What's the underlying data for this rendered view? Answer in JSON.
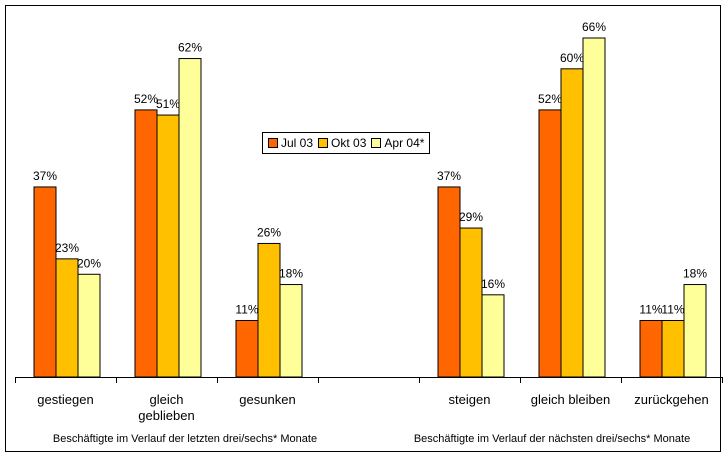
{
  "chart_data": {
    "type": "bar",
    "categories": [
      "gestiegen",
      "gleich geblieben",
      "gesunken",
      "",
      "steigen",
      "gleich bleiben",
      "zurückgehen"
    ],
    "category_lines": [
      [
        "gestiegen"
      ],
      [
        "gleich",
        "geblieben"
      ],
      [
        "gesunken"
      ],
      [
        ""
      ],
      [
        "steigen"
      ],
      [
        "gleich bleiben"
      ],
      [
        "zurückgehen"
      ]
    ],
    "series": [
      {
        "name": "Jul 03",
        "values": [
          37,
          52,
          11,
          null,
          37,
          52,
          11
        ],
        "labels": [
          "37%",
          "52%",
          "11%",
          "",
          "37%",
          "52%",
          "11%"
        ]
      },
      {
        "name": "Okt 03",
        "values": [
          23,
          51,
          26,
          null,
          29,
          60,
          11
        ],
        "labels": [
          "23%",
          "51%",
          "26%",
          "",
          "29%",
          "60%",
          "11%"
        ]
      },
      {
        "name": "Apr 04*",
        "values": [
          20,
          62,
          18,
          null,
          16,
          66,
          18
        ],
        "labels": [
          "20%",
          "62%",
          "18%",
          "",
          "16%",
          "66%",
          "18%"
        ]
      }
    ],
    "group_labels": [
      "Beschäftigte im Verlauf der letzten drei/sechs* Monate",
      "Beschäftigte im Verlauf der nächsten drei/sechs* Monate"
    ],
    "colors": [
      "#FF6600",
      "#FFC000",
      "#FFFF99"
    ],
    "ylim": [
      0,
      70
    ],
    "legend_position": "center-top",
    "grid": false
  }
}
